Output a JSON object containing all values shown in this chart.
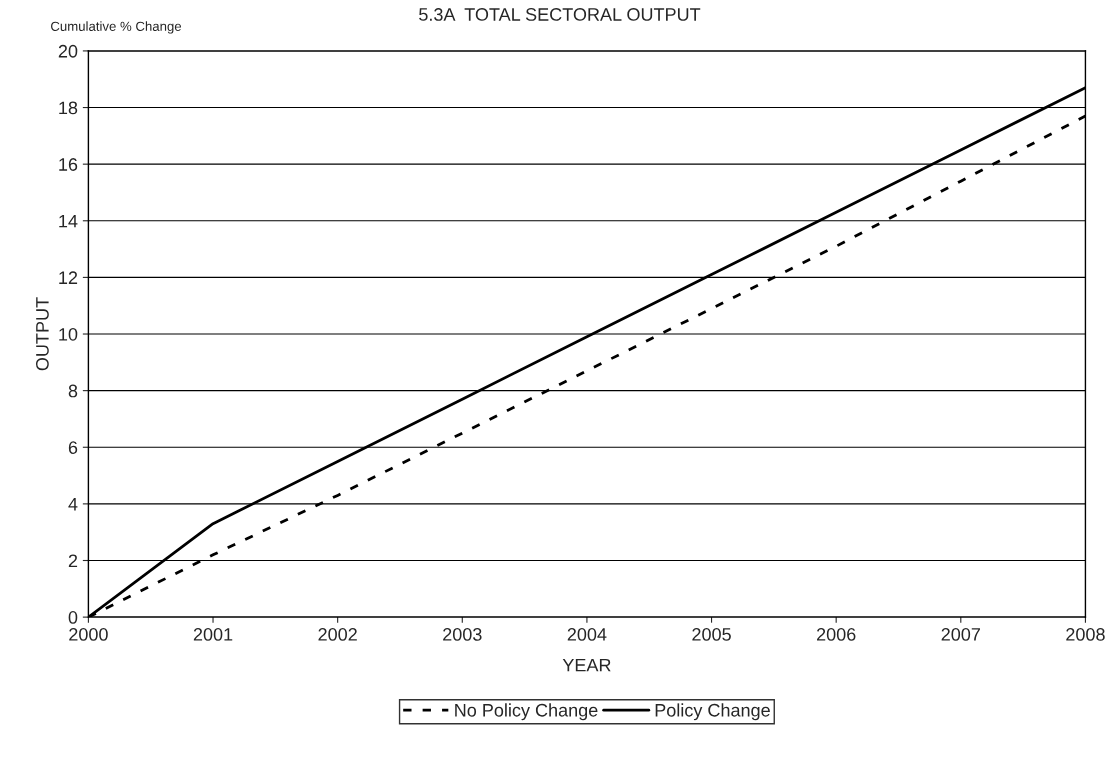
{
  "chart_data": {
    "type": "line",
    "title": "5.3A  TOTAL SECTORAL OUTPUT",
    "xlabel": "YEAR",
    "ylabel": "OUTPUT",
    "annotations": [
      "Cumulative % Change"
    ],
    "x": [
      2000,
      2001,
      2002,
      2003,
      2004,
      2005,
      2006,
      2007,
      2008
    ],
    "series": [
      {
        "name": "No Policy Change",
        "color": "#000000",
        "line_style": "dashed",
        "values": [
          0,
          2.2,
          4.3,
          6.5,
          8.7,
          10.9,
          13.1,
          15.4,
          17.7
        ]
      },
      {
        "name": "Policy Change",
        "color": "#000000",
        "line_style": "solid",
        "values": [
          0,
          3.3,
          5.5,
          7.7,
          9.9,
          12.1,
          14.3,
          16.5,
          18.7
        ]
      }
    ],
    "xlim": [
      2000,
      2008
    ],
    "xticks": [
      2000,
      2001,
      2002,
      2003,
      2004,
      2005,
      2006,
      2007,
      2008
    ],
    "ylim": [
      0,
      20
    ],
    "yticks": [
      0,
      2,
      4,
      6,
      8,
      10,
      12,
      14,
      16,
      18,
      20
    ],
    "grid": "y",
    "legend": "bottom",
    "marker": "none"
  }
}
